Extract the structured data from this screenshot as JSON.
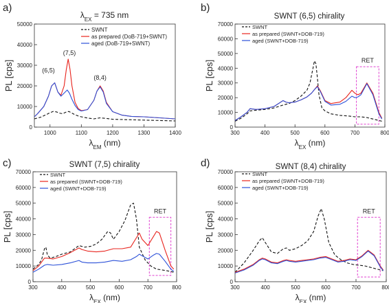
{
  "colors": {
    "swnt": "#111111",
    "prepared": "#e8231c",
    "aged": "#2b50d8",
    "ret": "#e040d0"
  },
  "chart_data": [
    {
      "panel": "a)",
      "type": "line",
      "title": "λEX = 735 nm",
      "title_parts": [
        "λ",
        "EX",
        " = 735 nm"
      ],
      "xlabel": "λEM (nm)",
      "xlabel_parts": [
        "λ",
        "EM",
        " (nm)"
      ],
      "ylabel": "PL [cps]",
      "xlim": [
        950,
        1400
      ],
      "ylim": [
        0,
        50000
      ],
      "xticks": [
        1000,
        1100,
        1200,
        1300,
        1400
      ],
      "yticks": [
        0,
        10000,
        20000,
        30000,
        40000,
        50000
      ],
      "legend": [
        "SWNT",
        "as prepared (DoB-719+SWNT)",
        "aged (DoB-719+SWNT)"
      ],
      "legend_position": "top-right",
      "annotations": [
        {
          "text": "(6,5)",
          "x": 995,
          "y": 26500
        },
        {
          "text": "(7,5)",
          "x": 1062,
          "y": 35000
        },
        {
          "text": "(8,4)",
          "x": 1160,
          "y": 23000
        }
      ],
      "series": [
        {
          "name": "SWNT",
          "style": "dashed",
          "color": "swnt",
          "x": [
            950,
            970,
            990,
            1000,
            1010,
            1020,
            1030,
            1040,
            1050,
            1060,
            1070,
            1080,
            1090,
            1100,
            1120,
            1140,
            1160,
            1180,
            1200,
            1250,
            1300,
            1350,
            1400
          ],
          "y": [
            4000,
            4800,
            6200,
            7000,
            7600,
            7400,
            6800,
            6500,
            7200,
            7600,
            6800,
            6000,
            5400,
            5000,
            4400,
            4000,
            4500,
            4200,
            3800,
            3600,
            3400,
            3200,
            3000
          ]
        },
        {
          "name": "as prepared (DoB-719+SWNT)",
          "style": "solid",
          "color": "prepared",
          "x": [
            950,
            960,
            980,
            995,
            1005,
            1015,
            1025,
            1035,
            1045,
            1052,
            1058,
            1064,
            1070,
            1080,
            1090,
            1100,
            1120,
            1140,
            1150,
            1160,
            1170,
            1180,
            1200,
            1230,
            1260,
            1300,
            1350,
            1400
          ],
          "y": [
            5000,
            6500,
            10000,
            15000,
            20000,
            21500,
            17000,
            15500,
            20000,
            28000,
            33000,
            28000,
            20000,
            12000,
            9000,
            8000,
            8500,
            13000,
            17500,
            20000,
            17500,
            12000,
            7500,
            5800,
            5200,
            5000,
            4500,
            4000
          ]
        },
        {
          "name": "aged (DoB-719+SWNT)",
          "style": "solid",
          "color": "aged",
          "x": [
            950,
            960,
            980,
            995,
            1005,
            1015,
            1025,
            1035,
            1045,
            1055,
            1062,
            1070,
            1080,
            1090,
            1100,
            1120,
            1140,
            1150,
            1160,
            1170,
            1180,
            1200,
            1230,
            1260,
            1300,
            1350,
            1400
          ],
          "y": [
            5000,
            6500,
            10000,
            15000,
            20000,
            21500,
            17000,
            15000,
            16500,
            18000,
            16500,
            13500,
            10500,
            8500,
            7800,
            8500,
            13000,
            17500,
            19500,
            17000,
            11500,
            7500,
            5800,
            5200,
            5000,
            4500,
            4000
          ]
        }
      ]
    },
    {
      "panel": "b)",
      "type": "line",
      "title": "SWNT (6,5) chirality",
      "xlabel": "λEX (nm)",
      "xlabel_parts": [
        "λ",
        "EX",
        " (nm)"
      ],
      "ylabel": "PL [cps]",
      "xlim": [
        300,
        800
      ],
      "ylim": [
        0,
        70000
      ],
      "xticks": [
        300,
        400,
        500,
        600,
        700,
        800
      ],
      "yticks": [
        0,
        10000,
        20000,
        30000,
        40000,
        50000,
        60000,
        70000
      ],
      "legend": [
        "SWNT",
        "as prepared (SWNT+DOB-719)",
        "aged (SWNT+DOB-719)"
      ],
      "legend_position": "top-left",
      "ret_label": "RET",
      "ret_box": {
        "x": [
          705,
          780
        ],
        "y": [
          2000,
          41000
        ]
      },
      "series": [
        {
          "name": "SWNT",
          "style": "dashed",
          "color": "swnt",
          "x": [
            300,
            320,
            340,
            350,
            370,
            400,
            430,
            460,
            480,
            500,
            520,
            540,
            550,
            560,
            565,
            570,
            575,
            580,
            590,
            600,
            620,
            650,
            680,
            700,
            720,
            740,
            760,
            780,
            790
          ],
          "y": [
            4000,
            6000,
            9000,
            11000,
            11500,
            12000,
            13000,
            15000,
            16000,
            18000,
            21000,
            25000,
            30000,
            40000,
            45000,
            43000,
            33000,
            22000,
            13000,
            11000,
            9000,
            8000,
            7500,
            7000,
            7000,
            6500,
            5500,
            4500,
            4000
          ]
        },
        {
          "name": "as prepared (SWNT+DOB-719)",
          "style": "solid",
          "color": "prepared",
          "x": [
            300,
            320,
            340,
            350,
            370,
            400,
            430,
            460,
            470,
            480,
            500,
            520,
            540,
            555,
            565,
            575,
            585,
            600,
            620,
            650,
            670,
            690,
            700,
            710,
            720,
            740,
            760,
            780,
            790
          ],
          "y": [
            4500,
            7000,
            10000,
            12500,
            12000,
            12500,
            14000,
            18000,
            17000,
            16500,
            17000,
            18500,
            20500,
            23000,
            25500,
            28000,
            24500,
            18000,
            16000,
            17000,
            20000,
            25000,
            23000,
            22000,
            23000,
            30000,
            23000,
            10000,
            6000
          ]
        },
        {
          "name": "aged (SWNT+DOB-719)",
          "style": "solid",
          "color": "aged",
          "x": [
            300,
            320,
            340,
            350,
            370,
            400,
            430,
            460,
            470,
            480,
            500,
            520,
            540,
            555,
            565,
            575,
            585,
            600,
            620,
            650,
            670,
            690,
            700,
            710,
            720,
            740,
            760,
            780,
            790
          ],
          "y": [
            4500,
            7000,
            10000,
            12500,
            12000,
            12500,
            14000,
            18000,
            17000,
            16500,
            17000,
            18500,
            20500,
            23000,
            25500,
            27500,
            24000,
            17500,
            15000,
            15500,
            17500,
            21000,
            20000,
            20500,
            22000,
            29500,
            22000,
            9000,
            5500
          ]
        }
      ]
    },
    {
      "panel": "c)",
      "type": "line",
      "title": "SWNT (7,5) chirality",
      "xlabel": "λEX (nm)",
      "xlabel_parts": [
        "λ",
        "EX",
        " (nm)"
      ],
      "ylabel": "PL [cps]",
      "xlim": [
        300,
        800
      ],
      "ylim": [
        0,
        70000
      ],
      "xticks": [
        300,
        400,
        500,
        600,
        700,
        800
      ],
      "yticks": [
        0,
        10000,
        20000,
        30000,
        40000,
        50000,
        60000,
        70000
      ],
      "legend": [
        "SWNT",
        "as prepared (SWNT+DOB-719)",
        "aged (SWNT+DOB-719)"
      ],
      "legend_position": "top-left",
      "ret_label": "RET",
      "ret_box": {
        "x": [
          705,
          780
        ],
        "y": [
          4000,
          41000
        ]
      },
      "series": [
        {
          "name": "SWNT",
          "style": "dashed",
          "color": "swnt",
          "x": [
            300,
            320,
            330,
            340,
            345,
            350,
            360,
            380,
            400,
            430,
            460,
            480,
            500,
            520,
            540,
            560,
            570,
            580,
            600,
            620,
            640,
            650,
            660,
            670,
            690,
            710,
            730,
            750,
            780,
            790
          ],
          "y": [
            8000,
            11000,
            14000,
            21000,
            22000,
            17000,
            15000,
            16000,
            17500,
            19000,
            23000,
            22000,
            22500,
            24000,
            27000,
            32000,
            31000,
            27000,
            32000,
            39000,
            49000,
            50000,
            40000,
            22000,
            14000,
            10000,
            8000,
            7500,
            6500,
            6000
          ]
        },
        {
          "name": "as prepared (SWNT+DOB-719)",
          "style": "solid",
          "color": "prepared",
          "x": [
            300,
            320,
            340,
            350,
            370,
            400,
            430,
            460,
            470,
            490,
            520,
            550,
            580,
            610,
            640,
            660,
            670,
            680,
            700,
            720,
            730,
            740,
            760,
            780,
            790
          ],
          "y": [
            7000,
            10000,
            15000,
            15000,
            14500,
            16000,
            18500,
            21500,
            20500,
            19500,
            19000,
            19500,
            21000,
            21000,
            22000,
            28000,
            31000,
            27000,
            23000,
            29000,
            32000,
            31000,
            20000,
            10000,
            8000
          ]
        },
        {
          "name": "aged (SWNT+DOB-719)",
          "style": "solid",
          "color": "aged",
          "x": [
            300,
            320,
            340,
            350,
            370,
            400,
            430,
            460,
            470,
            490,
            520,
            550,
            580,
            610,
            640,
            660,
            670,
            680,
            700,
            720,
            730,
            740,
            760,
            780,
            790
          ],
          "y": [
            6000,
            8000,
            10500,
            11000,
            10500,
            11000,
            12000,
            13500,
            12500,
            12000,
            12000,
            12500,
            13500,
            13000,
            14000,
            16000,
            17500,
            16500,
            14500,
            17000,
            18000,
            17500,
            13000,
            8000,
            6500
          ]
        }
      ]
    },
    {
      "panel": "d)",
      "type": "line",
      "title": "SWNT (8,4) chirality",
      "xlabel": "λEX (nm)",
      "xlabel_parts": [
        "λ",
        "EX",
        " (nm)"
      ],
      "ylabel": "PL [cps]",
      "xlim": [
        300,
        800
      ],
      "ylim": [
        0,
        70000
      ],
      "xticks": [
        300,
        400,
        500,
        600,
        700,
        800
      ],
      "yticks": [
        0,
        10000,
        20000,
        30000,
        40000,
        50000,
        60000,
        70000
      ],
      "legend": [
        "SWNT",
        "as prepared (SWNT+DOB-719)",
        "aged (SWNT+DOB-719)"
      ],
      "legend_position": "top-left",
      "ret_label": "RET",
      "ret_box": {
        "x": [
          705,
          780
        ],
        "y": [
          3000,
          41000
        ]
      },
      "series": [
        {
          "name": "SWNT",
          "style": "dashed",
          "color": "swnt",
          "x": [
            300,
            330,
            360,
            380,
            390,
            400,
            420,
            440,
            460,
            470,
            480,
            500,
            520,
            540,
            560,
            575,
            585,
            595,
            610,
            630,
            650,
            670,
            690,
            710,
            730,
            750,
            770,
            790
          ],
          "y": [
            6000,
            12000,
            20000,
            26000,
            28000,
            25000,
            19000,
            18000,
            21000,
            21500,
            20000,
            21000,
            23000,
            26000,
            32000,
            42000,
            46500,
            40000,
            25000,
            17000,
            14000,
            12000,
            11000,
            10500,
            10000,
            9000,
            8000,
            7000
          ]
        },
        {
          "name": "as prepared (SWNT+DOB-719)",
          "style": "solid",
          "color": "prepared",
          "x": [
            300,
            330,
            360,
            380,
            390,
            400,
            420,
            440,
            460,
            470,
            480,
            500,
            520,
            540,
            560,
            580,
            600,
            620,
            640,
            660,
            680,
            700,
            720,
            740,
            760,
            780,
            790
          ],
          "y": [
            6000,
            8000,
            11000,
            14000,
            15000,
            14500,
            12500,
            12000,
            13500,
            14000,
            13500,
            13000,
            13500,
            14000,
            14500,
            15500,
            16000,
            14500,
            13000,
            13500,
            14500,
            14000,
            16500,
            20000,
            17000,
            10000,
            7500
          ]
        },
        {
          "name": "aged (SWNT+DOB-719)",
          "style": "solid",
          "color": "aged",
          "x": [
            300,
            330,
            360,
            380,
            390,
            400,
            420,
            440,
            460,
            470,
            480,
            500,
            520,
            540,
            560,
            580,
            600,
            620,
            640,
            660,
            680,
            700,
            720,
            740,
            760,
            780,
            790
          ],
          "y": [
            5500,
            7500,
            10500,
            13500,
            14500,
            14000,
            12000,
            11500,
            13000,
            13500,
            13000,
            12500,
            13000,
            13500,
            14000,
            15000,
            15500,
            14000,
            12500,
            13000,
            14000,
            13500,
            16000,
            19500,
            16500,
            9500,
            7000
          ]
        }
      ]
    }
  ]
}
